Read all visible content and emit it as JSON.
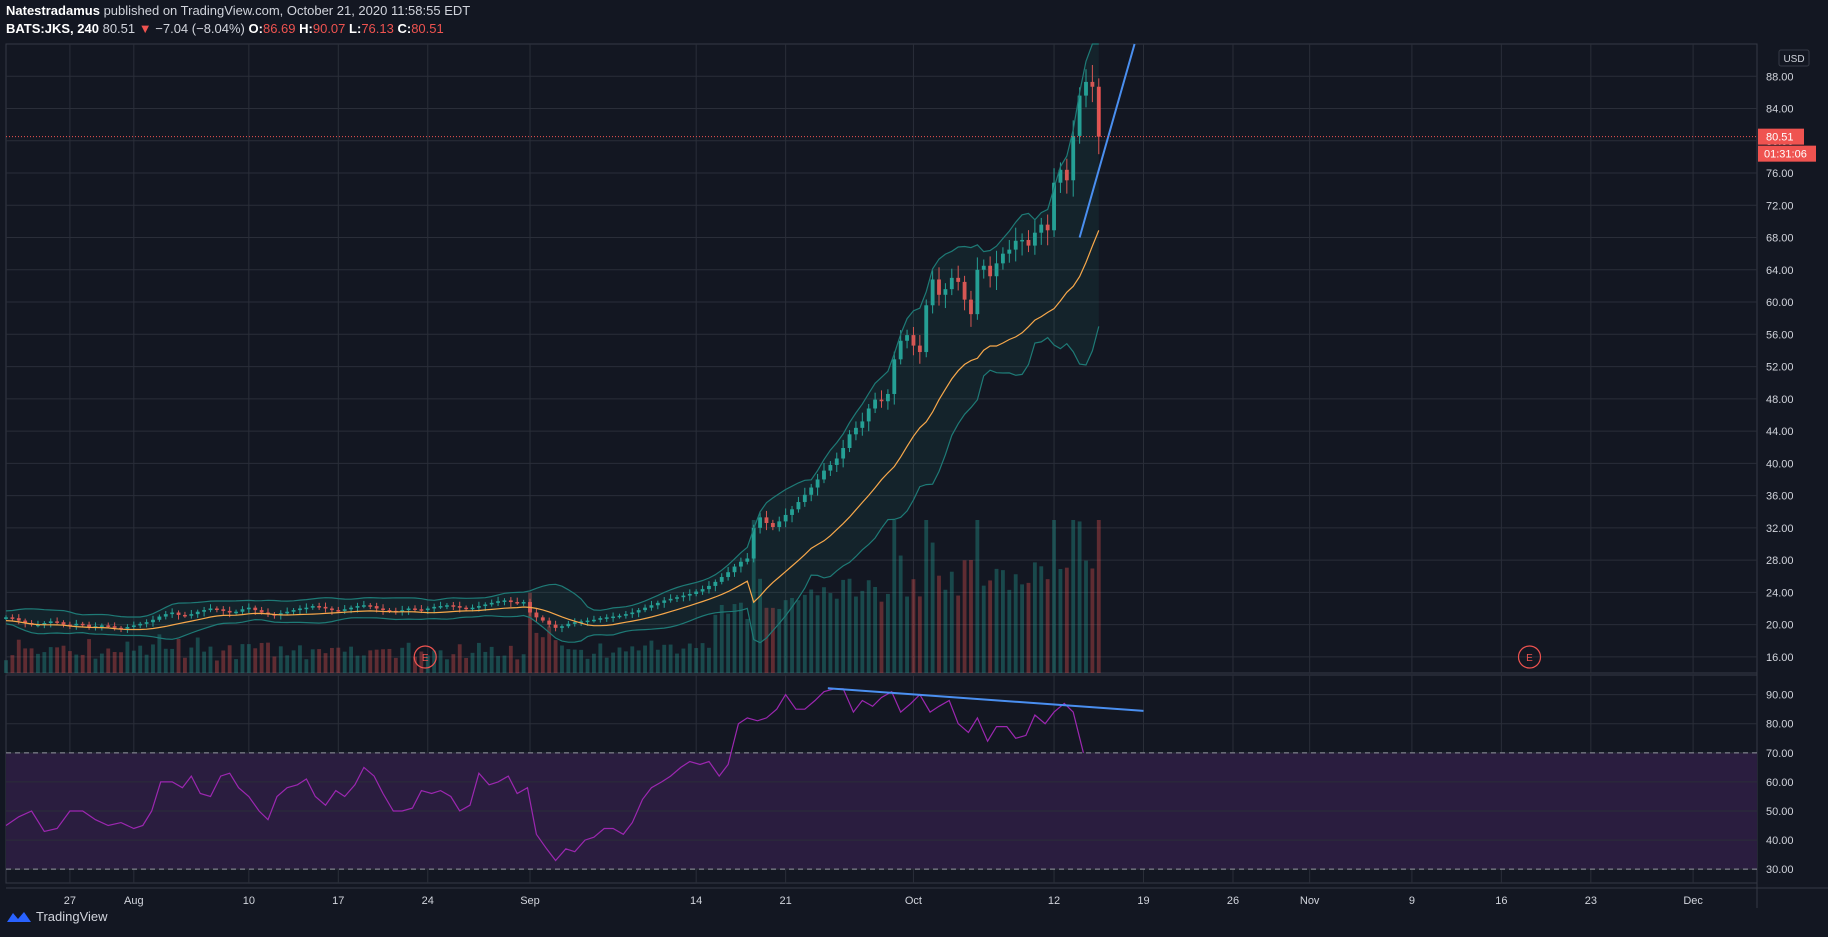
{
  "header": {
    "author": "Natestradamus",
    "published": "published on TradingView.com, October 21, 2020 11:58:55 EDT",
    "symbol": "BATS:JKS, 240",
    "last": "80.51",
    "arrow": "▼",
    "change": "−7.04 (−8.04%)",
    "o_label": "O:",
    "o_val": "86.69",
    "h_label": "H:",
    "h_val": "90.07",
    "l_label": "L:",
    "l_val": "76.13",
    "c_label": "C:",
    "c_val": "80.51"
  },
  "footer": {
    "brand": "TradingView"
  },
  "colors": {
    "bg": "#131722",
    "grid": "#2a2e39",
    "up": "#26a69a",
    "down": "#ef5350",
    "ma": "#f7a84b",
    "band": "#1e7a76",
    "rsi": "#9c27b0",
    "rsi_zone": "#2a1d3f",
    "trend": "#4a8ff0",
    "text": "#d1d4dc"
  },
  "chart_data": [
    {
      "type": "candlestick",
      "title": "BATS:JKS, 240",
      "currency": "USD",
      "ylim": [
        14,
        92
      ],
      "y_ticks": [
        "88.00",
        "84.00",
        "80.00",
        "76.00",
        "72.00",
        "68.00",
        "64.00",
        "60.00",
        "56.00",
        "52.00",
        "48.00",
        "44.00",
        "40.00",
        "36.00",
        "32.00",
        "28.00",
        "24.00",
        "20.00",
        "16.00"
      ],
      "x_ticks": [
        "27",
        "Aug",
        "10",
        "17",
        "24",
        "Sep",
        "14",
        "21",
        "Oct",
        "12",
        "19",
        "26",
        "Nov",
        "9",
        "16",
        "23",
        "Dec"
      ],
      "x_tick_days": [
        -5,
        0,
        9,
        16,
        23,
        31,
        44,
        51,
        61,
        72,
        79,
        86,
        92,
        100,
        107,
        114,
        122
      ],
      "x_range_days": [
        -10,
        127
      ],
      "price_label": "80.51",
      "countdown_label": "01:31:06",
      "earnings_marker": "E",
      "earnings_days": [
        22.8,
        109.2
      ],
      "closes": [
        [
          -10,
          20.9
        ],
        [
          -9.5,
          20.8
        ],
        [
          -9,
          20.5
        ],
        [
          -8.5,
          20.2
        ],
        [
          -8,
          20.0
        ],
        [
          -7.5,
          20.0
        ],
        [
          -7,
          20.2
        ],
        [
          -6.5,
          20.4
        ],
        [
          -6,
          20.3
        ],
        [
          -5.5,
          20.0
        ],
        [
          -5,
          19.9
        ],
        [
          -4.5,
          20.1
        ],
        [
          -4,
          20.0
        ],
        [
          -3.5,
          19.7
        ],
        [
          -3,
          19.8
        ],
        [
          -2.5,
          19.9
        ],
        [
          -2,
          19.8
        ],
        [
          -1.5,
          19.6
        ],
        [
          -1,
          19.5
        ],
        [
          -0.5,
          19.7
        ],
        [
          0,
          19.9
        ],
        [
          0.5,
          20.1
        ],
        [
          1,
          20.3
        ],
        [
          1.5,
          20.6
        ],
        [
          2,
          21.0
        ],
        [
          2.5,
          21.3
        ],
        [
          3,
          21.5
        ],
        [
          3.5,
          21.2
        ],
        [
          4,
          21.1
        ],
        [
          4.5,
          21.3
        ],
        [
          5,
          21.6
        ],
        [
          5.5,
          21.8
        ],
        [
          6,
          22.0
        ],
        [
          6.5,
          21.9
        ],
        [
          7,
          21.7
        ],
        [
          7.5,
          21.5
        ],
        [
          8,
          21.6
        ],
        [
          8.5,
          21.9
        ],
        [
          9,
          22.1
        ],
        [
          9.5,
          21.8
        ],
        [
          10,
          21.5
        ],
        [
          10.5,
          21.3
        ],
        [
          11,
          21.2
        ],
        [
          11.5,
          21.4
        ],
        [
          12,
          21.6
        ],
        [
          12.5,
          21.8
        ],
        [
          13,
          22.0
        ],
        [
          13.5,
          22.1
        ],
        [
          14,
          22.3
        ],
        [
          14.5,
          22.2
        ],
        [
          15,
          22.0
        ],
        [
          15.5,
          21.8
        ],
        [
          16,
          21.7
        ],
        [
          16.5,
          21.9
        ],
        [
          17,
          22.1
        ],
        [
          17.5,
          22.3
        ],
        [
          18,
          22.4
        ],
        [
          18.5,
          22.3
        ],
        [
          19,
          22.0
        ],
        [
          19.5,
          21.8
        ],
        [
          20,
          21.7
        ],
        [
          20.5,
          21.6
        ],
        [
          21,
          21.8
        ],
        [
          21.5,
          22.0
        ],
        [
          22,
          21.9
        ],
        [
          22.5,
          21.8
        ],
        [
          23,
          22.0
        ],
        [
          23.5,
          22.2
        ],
        [
          24,
          22.3
        ],
        [
          24.5,
          22.4
        ],
        [
          25,
          22.3
        ],
        [
          25.5,
          22.1
        ],
        [
          26,
          22.0
        ],
        [
          26.5,
          22.1
        ],
        [
          27,
          22.3
        ],
        [
          27.5,
          22.5
        ],
        [
          28,
          22.7
        ],
        [
          28.5,
          22.9
        ],
        [
          29,
          23.0
        ],
        [
          29.5,
          22.8
        ],
        [
          30,
          22.7
        ],
        [
          30.5,
          22.8
        ],
        [
          31,
          21.5
        ],
        [
          31.5,
          20.9
        ],
        [
          32,
          20.5
        ],
        [
          32.5,
          20.0
        ],
        [
          33,
          19.6
        ],
        [
          33.5,
          19.8
        ],
        [
          34,
          20.1
        ],
        [
          34.5,
          20.3
        ],
        [
          35,
          20.4
        ],
        [
          35.5,
          20.5
        ],
        [
          36,
          20.6
        ],
        [
          36.5,
          20.8
        ],
        [
          37,
          20.9
        ],
        [
          37.5,
          21.0
        ],
        [
          38,
          21.1
        ],
        [
          38.5,
          21.3
        ],
        [
          39,
          21.5
        ],
        [
          39.5,
          21.8
        ],
        [
          40,
          22.1
        ],
        [
          40.5,
          22.4
        ],
        [
          41,
          22.7
        ],
        [
          41.5,
          23.0
        ],
        [
          42,
          23.2
        ],
        [
          42.5,
          23.4
        ],
        [
          43,
          23.6
        ],
        [
          43.5,
          23.8
        ],
        [
          44,
          24.1
        ],
        [
          44.5,
          24.4
        ],
        [
          45,
          24.8
        ],
        [
          45.5,
          25.3
        ],
        [
          46,
          25.9
        ],
        [
          46.5,
          26.5
        ],
        [
          47,
          27.2
        ],
        [
          47.5,
          27.8
        ],
        [
          48,
          28.2
        ],
        [
          48.5,
          32.0
        ],
        [
          49,
          33.3
        ],
        [
          49.5,
          32.6
        ],
        [
          50,
          32.1
        ],
        [
          50.5,
          32.8
        ],
        [
          51,
          33.6
        ],
        [
          51.5,
          34.3
        ],
        [
          52,
          35.2
        ],
        [
          52.5,
          36.1
        ],
        [
          53,
          37.0
        ],
        [
          53.5,
          38.0
        ],
        [
          54,
          39.1
        ],
        [
          54.5,
          39.8
        ],
        [
          55,
          40.6
        ],
        [
          55.5,
          41.9
        ],
        [
          56,
          43.6
        ],
        [
          56.5,
          44.4
        ],
        [
          57,
          45.2
        ],
        [
          57.5,
          46.8
        ],
        [
          58,
          47.9
        ],
        [
          58.5,
          47.7
        ],
        [
          59,
          48.6
        ],
        [
          59.5,
          52.9
        ],
        [
          60,
          55.2
        ],
        [
          60.5,
          55.9
        ],
        [
          61,
          54.6
        ],
        [
          61.5,
          53.8
        ],
        [
          62,
          59.6
        ],
        [
          62.5,
          62.8
        ],
        [
          63,
          60.9
        ],
        [
          63.5,
          61.6
        ],
        [
          64,
          63.0
        ],
        [
          64.5,
          62.5
        ],
        [
          65,
          60.3
        ],
        [
          65.5,
          58.5
        ],
        [
          66,
          64.0
        ],
        [
          66.5,
          64.5
        ],
        [
          67,
          63.2
        ],
        [
          67.5,
          64.8
        ],
        [
          68,
          66.0
        ],
        [
          68.5,
          66.5
        ],
        [
          69,
          67.6
        ],
        [
          69.5,
          67.7
        ],
        [
          70,
          67.0
        ],
        [
          70.5,
          68.6
        ],
        [
          71,
          69.6
        ],
        [
          71.5,
          68.9
        ],
        [
          72,
          74.8
        ],
        [
          72.5,
          76.4
        ],
        [
          73,
          75.1
        ],
        [
          73.5,
          80.6
        ],
        [
          74,
          85.6
        ],
        [
          74.5,
          87.3
        ],
        [
          75,
          86.7
        ],
        [
          75.5,
          80.51
        ]
      ],
      "volume_max_label": "",
      "rsi": {
        "name": "RSI",
        "ylim": [
          28,
          94
        ],
        "y_ticks": [
          "90.00",
          "80.00",
          "70.00",
          "60.00",
          "50.00",
          "40.00",
          "30.00"
        ],
        "bands": [
          70,
          30
        ],
        "values": [
          [
            -10,
            45
          ],
          [
            -9,
            48
          ],
          [
            -8,
            50
          ],
          [
            -7,
            43
          ],
          [
            -6,
            44
          ],
          [
            -5,
            50
          ],
          [
            -4,
            50
          ],
          [
            -3,
            47
          ],
          [
            -2,
            45
          ],
          [
            -1,
            46
          ],
          [
            0,
            44
          ],
          [
            0.7,
            45
          ],
          [
            1.4,
            50
          ],
          [
            2.1,
            60
          ],
          [
            3,
            60
          ],
          [
            3.8,
            58
          ],
          [
            4.5,
            62
          ],
          [
            5.2,
            56
          ],
          [
            6,
            55
          ],
          [
            6.8,
            62
          ],
          [
            7.5,
            63
          ],
          [
            8.2,
            58
          ],
          [
            9,
            55
          ],
          [
            9.8,
            50
          ],
          [
            10.5,
            47
          ],
          [
            11.2,
            55
          ],
          [
            12,
            58
          ],
          [
            12.8,
            59
          ],
          [
            13.5,
            61
          ],
          [
            14.2,
            55
          ],
          [
            15,
            52
          ],
          [
            15.8,
            57
          ],
          [
            16.5,
            55
          ],
          [
            17.3,
            59
          ],
          [
            18,
            65
          ],
          [
            18.8,
            62
          ],
          [
            19.5,
            56
          ],
          [
            20.3,
            50
          ],
          [
            21,
            50
          ],
          [
            21.8,
            51
          ],
          [
            22.5,
            57
          ],
          [
            23.3,
            56
          ],
          [
            24,
            57
          ],
          [
            24.8,
            55
          ],
          [
            25.5,
            50
          ],
          [
            26.3,
            52
          ],
          [
            27,
            63
          ],
          [
            27.8,
            59
          ],
          [
            28.5,
            60
          ],
          [
            29.3,
            62
          ],
          [
            30,
            56
          ],
          [
            30.8,
            58
          ],
          [
            31.5,
            42
          ],
          [
            32.3,
            37
          ],
          [
            33,
            33
          ],
          [
            33.8,
            37
          ],
          [
            34.5,
            36
          ],
          [
            35.3,
            40
          ],
          [
            36,
            41
          ],
          [
            36.8,
            44
          ],
          [
            37.5,
            44
          ],
          [
            38.3,
            42
          ],
          [
            39,
            46
          ],
          [
            39.8,
            54
          ],
          [
            40.5,
            58
          ],
          [
            41.3,
            60
          ],
          [
            42,
            62
          ],
          [
            42.8,
            65
          ],
          [
            43.5,
            67
          ],
          [
            44.3,
            66
          ],
          [
            45,
            67
          ],
          [
            45.8,
            62
          ],
          [
            46.5,
            66
          ],
          [
            47.3,
            80
          ],
          [
            48,
            82
          ],
          [
            48.8,
            81
          ],
          [
            49.5,
            82
          ],
          [
            50.3,
            85
          ],
          [
            51,
            90
          ],
          [
            51.8,
            85
          ],
          [
            52.5,
            85
          ],
          [
            53.3,
            88
          ],
          [
            54,
            91
          ],
          [
            54.8,
            92
          ],
          [
            55.5,
            92
          ],
          [
            56.3,
            84
          ],
          [
            57,
            88
          ],
          [
            57.8,
            86
          ],
          [
            58.5,
            89
          ],
          [
            59.3,
            91
          ],
          [
            60,
            84
          ],
          [
            60.8,
            87
          ],
          [
            61.5,
            90
          ],
          [
            62.3,
            84
          ],
          [
            63,
            86
          ],
          [
            63.8,
            88
          ],
          [
            64.5,
            80
          ],
          [
            65.3,
            77
          ],
          [
            66,
            82
          ],
          [
            66.8,
            74
          ],
          [
            67.5,
            79
          ],
          [
            68.3,
            79
          ],
          [
            69,
            75
          ],
          [
            69.8,
            76
          ],
          [
            70.5,
            83
          ],
          [
            71.3,
            80
          ],
          [
            72,
            84
          ],
          [
            72.8,
            87
          ],
          [
            73.5,
            84
          ],
          [
            74.3,
            70
          ]
        ],
        "trendline": [
          [
            54.3,
            92.2
          ],
          [
            79,
            84.4
          ]
        ]
      },
      "trendline_price": [
        [
          74.0,
          68.0
        ],
        [
          78.3,
          92
        ]
      ],
      "series": [
        {
          "name": "Bollinger Bands",
          "values": []
        },
        {
          "name": "Moving Average",
          "values": []
        },
        {
          "name": "Volume",
          "values": []
        }
      ]
    }
  ]
}
